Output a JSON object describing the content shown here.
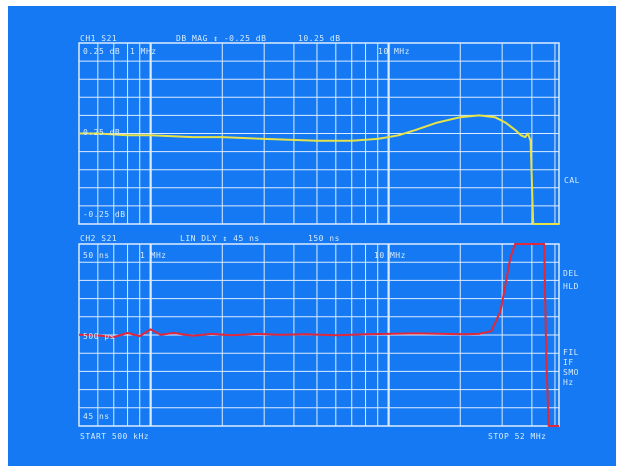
{
  "colors": {
    "screen_bg": "#1479f2",
    "grid": "#dcecff",
    "annotation": "#d8ecff",
    "trace_ch1": "#e6e24a",
    "trace_ch2": "#e0283c"
  },
  "header": {
    "ch1": "CH1 S21",
    "ch1_mode": "DB MAG ↕ -0.25 dB",
    "ch1_ref": "10.25 dB",
    "ch2": "CH2 S21",
    "ch2_mode": "LIN DLY ↕ 45 ns",
    "ch2_ref": "150 ns"
  },
  "footer": {
    "start": "START  500 kHz",
    "stop": "STOP 52 MHz"
  },
  "chart_data": [
    {
      "type": "line",
      "channel": "CH1",
      "x_scale": "log",
      "xlim": [
        0.5,
        52
      ],
      "ylim": [
        -0.25,
        0.25
      ],
      "ylabel_top": "0.25 dB",
      "ylabel_mid": "0.25 dB",
      "ylabel_bottom": "-0.25 dB",
      "marker_labels": [
        "1 MHz",
        "10 MHz"
      ],
      "status": [
        "CAL"
      ],
      "grid": true,
      "series": [
        {
          "x": [
            0.5,
            0.6,
            0.8,
            1.0,
            1.5,
            2.0,
            3.0,
            5.0,
            7.0,
            9.0,
            11.0,
            13.0,
            16.0,
            20.0,
            24.0,
            28.0,
            31.0,
            34.0,
            36.0,
            37.5,
            38.5,
            39.5,
            40.5,
            42.0,
            44.0,
            46.0,
            48.0,
            52.0
          ],
          "y": [
            0.0,
            0.0,
            -0.005,
            -0.005,
            -0.01,
            -0.01,
            -0.015,
            -0.02,
            -0.02,
            -0.015,
            -0.005,
            0.01,
            0.03,
            0.045,
            0.05,
            0.045,
            0.03,
            0.01,
            -0.005,
            -0.01,
            0.0,
            -0.02,
            -0.25,
            -0.25,
            -0.25,
            -0.25,
            -0.25,
            -0.25
          ]
        }
      ]
    },
    {
      "type": "line",
      "channel": "CH2",
      "x_scale": "log",
      "xlim": [
        0.5,
        52
      ],
      "ylim": [
        45,
        450
      ],
      "ylabel_top": "50 ns",
      "ylabel_mid": "500 ps",
      "ylabel_bottom": "45 ns",
      "marker_labels": [
        "1 MHz",
        "10 MHz"
      ],
      "status": [
        "DEL",
        "HLD",
        "FIL",
        "IF",
        "SMO",
        "Hz"
      ],
      "grid": true,
      "series": [
        {
          "x": [
            0.5,
            0.62,
            0.7,
            0.8,
            0.9,
            1.0,
            1.1,
            1.25,
            1.5,
            1.8,
            2.2,
            2.8,
            3.5,
            4.5,
            6.0,
            8.0,
            10.0,
            13.0,
            17.0,
            21.0,
            24.0,
            27.0,
            29.5,
            31.0,
            32.5,
            34.0,
            35.5,
            37.0,
            39.0,
            41.0,
            43.0,
            44.0,
            45.0,
            46.0,
            47.0,
            48.0,
            49.0,
            50.0,
            51.0,
            52.0
          ],
          "y": [
            248,
            246,
            243,
            252,
            245,
            260,
            248,
            252,
            246,
            250,
            247,
            250,
            248,
            249,
            247,
            249,
            250,
            251,
            250,
            249,
            250,
            256,
            300,
            360,
            420,
            450,
            450,
            450,
            450,
            450,
            450,
            450,
            450,
            200,
            45,
            45,
            45,
            45,
            45,
            45
          ]
        }
      ]
    }
  ]
}
